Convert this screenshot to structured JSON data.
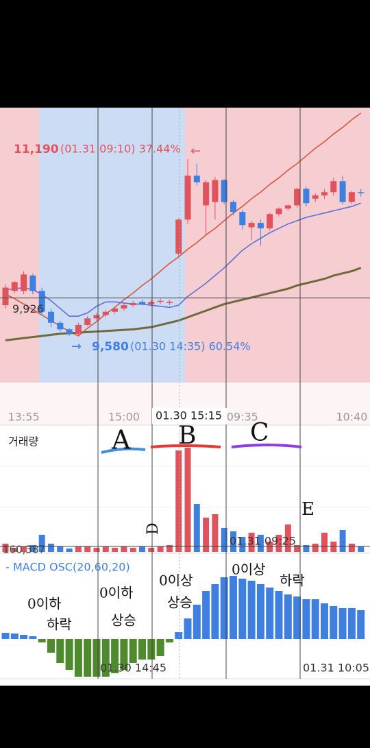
{
  "chart_data": [
    {
      "type": "candlestick",
      "categories": [
        null,
        null,
        "13:55",
        null,
        null,
        null,
        null,
        null,
        null,
        null,
        null,
        null,
        null,
        "15:00",
        null,
        null,
        null,
        null,
        null,
        null,
        null,
        null,
        null,
        null,
        null,
        null,
        "09:35",
        null,
        null,
        null,
        null,
        null,
        null,
        null,
        null,
        null,
        null,
        null,
        "10:40",
        null
      ],
      "open": [
        9860,
        9990,
        9990,
        10130,
        9990,
        9800,
        9700,
        9640,
        9600,
        9680,
        9740,
        9770,
        9800,
        9830,
        9860,
        9890,
        9870,
        9890,
        9880,
        10330,
        10640,
        11040,
        10770,
        10800,
        11000,
        10800,
        10710,
        10570,
        10610,
        10560,
        10690,
        10740,
        10770,
        10920,
        10830,
        10860,
        10890,
        10990,
        10800,
        10890
      ],
      "high": [
        10050,
        10080,
        10170,
        10150,
        10020,
        9830,
        9720,
        9650,
        9700,
        9760,
        9790,
        9820,
        9850,
        9880,
        9900,
        9910,
        9910,
        9920,
        9910,
        10650,
        11190,
        11150,
        11000,
        11030,
        11010,
        10820,
        10730,
        10630,
        10640,
        10700,
        10750,
        10780,
        10930,
        10940,
        10880,
        10920,
        11020,
        11040,
        10900,
        10920
      ],
      "low": [
        9830,
        9970,
        9960,
        9960,
        9770,
        9660,
        9620,
        9580,
        9580,
        9670,
        9720,
        9750,
        9780,
        9810,
        9840,
        9860,
        9850,
        9870,
        9860,
        10300,
        10600,
        10950,
        10500,
        10640,
        10780,
        10680,
        10550,
        10450,
        10400,
        10540,
        10670,
        10720,
        10750,
        10760,
        10800,
        10830,
        10860,
        10780,
        10780,
        10850
      ],
      "close": [
        10020,
        10070,
        10140,
        9990,
        9800,
        9700,
        9640,
        9600,
        9680,
        9740,
        9770,
        9800,
        9830,
        9860,
        9880,
        9870,
        9890,
        9900,
        9890,
        10640,
        11040,
        10980,
        10980,
        11000,
        10800,
        10710,
        10590,
        10610,
        10560,
        10690,
        10740,
        10770,
        10920,
        10790,
        10860,
        10890,
        10990,
        10800,
        10890,
        10880
      ],
      "up_color": "#e0525c",
      "down_color": "#3f7fe0",
      "ylim": [
        9155,
        11660
      ],
      "lines": [
        {
          "color": "#d9553c",
          "values": [
            9960,
            9920,
            9870,
            9820,
            9770,
            9720,
            9670,
            9620,
            9580,
            9650,
            9710,
            9780,
            9840,
            9910,
            9970,
            10040,
            10100,
            10170,
            10240,
            10300,
            10370,
            10430,
            10500,
            10560,
            10630,
            10700,
            10760,
            10830,
            10890,
            10960,
            11020,
            11090,
            11150,
            11220,
            11290,
            11350,
            11420,
            11480,
            11550,
            11610
          ]
        },
        {
          "color": "#5b6fd6",
          "values": [
            10000,
            10010,
            10020,
            10000,
            9960,
            9900,
            9830,
            9760,
            9760,
            9790,
            9850,
            9890,
            9890,
            9880,
            9870,
            9870,
            9860,
            9850,
            9840,
            9860,
            9940,
            10000,
            10060,
            10130,
            10200,
            10280,
            10360,
            10420,
            10470,
            10520,
            10560,
            10600,
            10630,
            10660,
            10680,
            10700,
            10720,
            10740,
            10760,
            10790
          ]
        },
        {
          "color": "#6f6a3a",
          "values": [
            9540,
            9550,
            9560,
            9570,
            9580,
            9590,
            9600,
            9605,
            9610,
            9615,
            9620,
            9625,
            9630,
            9635,
            9640,
            9650,
            9660,
            9680,
            9700,
            9720,
            9750,
            9780,
            9810,
            9840,
            9870,
            9890,
            9910,
            9930,
            9950,
            9970,
            9990,
            10010,
            10040,
            10060,
            10080,
            10100,
            10130,
            10150,
            10170,
            10200
          ]
        }
      ],
      "high_label": {
        "value": 11190,
        "label": "11,190",
        "detail": "(01.31 09:10) 37.44%"
      },
      "low_label": {
        "value": 9580,
        "label": "9,580",
        "detail": "(01.30 14:35) 60.54%"
      },
      "current": {
        "value": 9926,
        "label": "9,926"
      },
      "crosshair_time": "01.30 15:15"
    },
    {
      "type": "bar",
      "title": "거래량",
      "values": [
        240000,
        120000,
        160000,
        200000,
        500000,
        240000,
        160000,
        100000,
        160000,
        160000,
        120000,
        160000,
        120000,
        160000,
        120000,
        160000,
        120000,
        160000,
        200000,
        2960000,
        3040000,
        1400000,
        1000000,
        1100000,
        700000,
        600000,
        440000,
        560000,
        500000,
        300000,
        500000,
        800000,
        200000,
        200000,
        240000,
        560000,
        300000,
        640000,
        240000,
        160000
      ],
      "ylim": [
        0,
        3600000
      ],
      "current": {
        "value": 160387,
        "label": "160,387"
      },
      "crosshair_time": "01.31 09:25"
    },
    {
      "type": "bar",
      "title": "MACD OSC(20,60,20)",
      "values": [
        9,
        8,
        6,
        4,
        -5,
        -20,
        -35,
        -45,
        -55,
        -55,
        -55,
        -55,
        -50,
        -45,
        -35,
        -30,
        -30,
        -25,
        -5,
        10,
        30,
        50,
        70,
        80,
        90,
        92,
        88,
        85,
        80,
        75,
        70,
        65,
        62,
        58,
        58,
        52,
        48,
        45,
        45,
        42
      ],
      "ylim": [
        -58,
        122
      ],
      "positive_color": "#3f7fe0",
      "negative_color": "#4f8a2f",
      "crosshair_times": [
        "01.30 14:45",
        "01.31 10:05"
      ]
    }
  ],
  "annotations": {
    "segments": [
      "A",
      "B",
      "C"
    ],
    "points": [
      "D",
      "E"
    ],
    "notes": [
      [
        "0이하",
        "하락"
      ],
      [
        "0이하",
        "상승"
      ],
      [
        "0이상",
        "상승"
      ],
      [
        "0이상",
        "하락"
      ]
    ]
  }
}
